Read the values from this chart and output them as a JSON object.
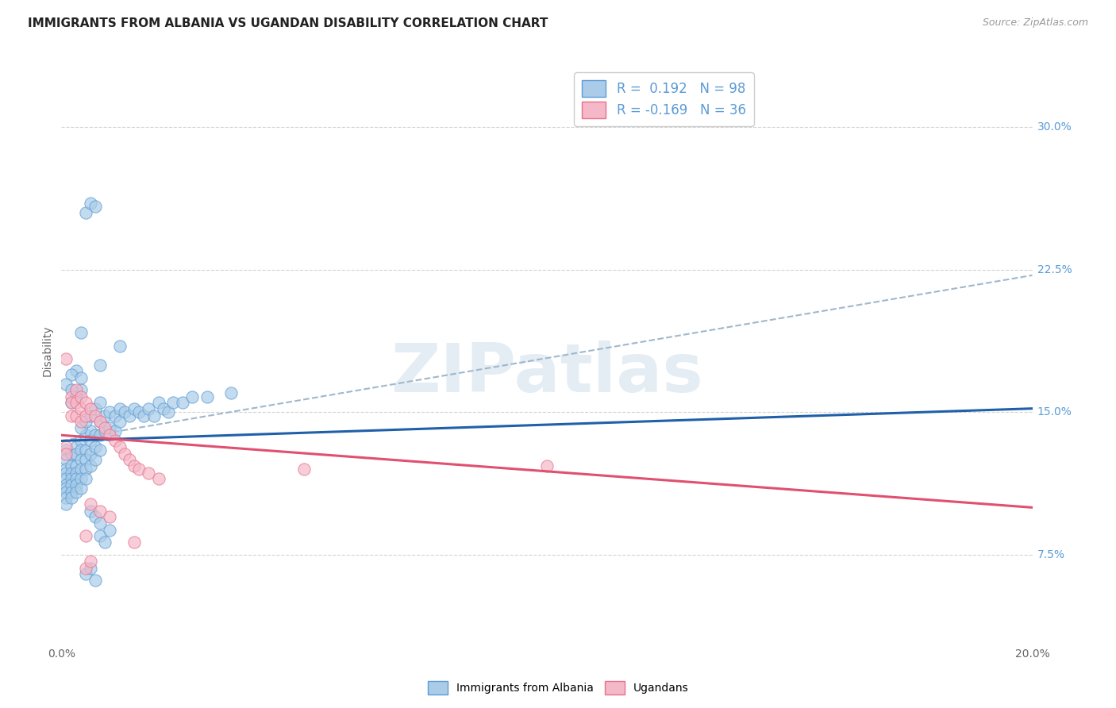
{
  "title": "IMMIGRANTS FROM ALBANIA VS UGANDAN DISABILITY CORRELATION CHART",
  "source": "Source: ZipAtlas.com",
  "ylabel": "Disability",
  "ytick_labels": [
    "7.5%",
    "15.0%",
    "22.5%",
    "30.0%"
  ],
  "ytick_values": [
    0.075,
    0.15,
    0.225,
    0.3
  ],
  "xlim": [
    0.0,
    0.2
  ],
  "ylim": [
    0.03,
    0.335
  ],
  "watermark": "ZIPatlas",
  "blue_color": "#5b9bd5",
  "pink_color": "#e8708a",
  "blue_scatter_face": "#aacce8",
  "pink_scatter_face": "#f4b8c8",
  "trend_blue": "#2060a8",
  "trend_pink": "#e05070",
  "trend_dashed_color": "#a0b8cc",
  "albania_data": [
    [
      0.001,
      0.13
    ],
    [
      0.001,
      0.125
    ],
    [
      0.001,
      0.12
    ],
    [
      0.001,
      0.118
    ],
    [
      0.001,
      0.115
    ],
    [
      0.001,
      0.112
    ],
    [
      0.001,
      0.11
    ],
    [
      0.001,
      0.108
    ],
    [
      0.001,
      0.105
    ],
    [
      0.001,
      0.102
    ],
    [
      0.002,
      0.128
    ],
    [
      0.002,
      0.122
    ],
    [
      0.002,
      0.118
    ],
    [
      0.002,
      0.115
    ],
    [
      0.002,
      0.112
    ],
    [
      0.002,
      0.108
    ],
    [
      0.002,
      0.105
    ],
    [
      0.003,
      0.132
    ],
    [
      0.003,
      0.128
    ],
    [
      0.003,
      0.122
    ],
    [
      0.003,
      0.118
    ],
    [
      0.003,
      0.115
    ],
    [
      0.003,
      0.112
    ],
    [
      0.003,
      0.108
    ],
    [
      0.004,
      0.135
    ],
    [
      0.004,
      0.13
    ],
    [
      0.004,
      0.125
    ],
    [
      0.004,
      0.12
    ],
    [
      0.004,
      0.115
    ],
    [
      0.004,
      0.11
    ],
    [
      0.005,
      0.138
    ],
    [
      0.005,
      0.13
    ],
    [
      0.005,
      0.125
    ],
    [
      0.005,
      0.12
    ],
    [
      0.005,
      0.115
    ],
    [
      0.006,
      0.14
    ],
    [
      0.006,
      0.135
    ],
    [
      0.006,
      0.128
    ],
    [
      0.006,
      0.122
    ],
    [
      0.007,
      0.138
    ],
    [
      0.007,
      0.132
    ],
    [
      0.007,
      0.125
    ],
    [
      0.008,
      0.145
    ],
    [
      0.008,
      0.138
    ],
    [
      0.008,
      0.13
    ],
    [
      0.009,
      0.148
    ],
    [
      0.009,
      0.14
    ],
    [
      0.01,
      0.15
    ],
    [
      0.01,
      0.142
    ],
    [
      0.011,
      0.148
    ],
    [
      0.011,
      0.14
    ],
    [
      0.012,
      0.152
    ],
    [
      0.012,
      0.145
    ],
    [
      0.013,
      0.15
    ],
    [
      0.014,
      0.148
    ],
    [
      0.015,
      0.152
    ],
    [
      0.016,
      0.15
    ],
    [
      0.017,
      0.148
    ],
    [
      0.018,
      0.152
    ],
    [
      0.019,
      0.148
    ],
    [
      0.02,
      0.155
    ],
    [
      0.021,
      0.152
    ],
    [
      0.022,
      0.15
    ],
    [
      0.023,
      0.155
    ],
    [
      0.025,
      0.155
    ],
    [
      0.027,
      0.158
    ],
    [
      0.03,
      0.158
    ],
    [
      0.035,
      0.16
    ],
    [
      0.004,
      0.192
    ],
    [
      0.008,
      0.175
    ],
    [
      0.012,
      0.185
    ],
    [
      0.005,
      0.255
    ],
    [
      0.006,
      0.26
    ],
    [
      0.007,
      0.258
    ],
    [
      0.005,
      0.065
    ],
    [
      0.006,
      0.068
    ],
    [
      0.007,
      0.062
    ],
    [
      0.003,
      0.16
    ],
    [
      0.004,
      0.162
    ],
    [
      0.002,
      0.155
    ],
    [
      0.008,
      0.085
    ],
    [
      0.009,
      0.082
    ],
    [
      0.01,
      0.088
    ],
    [
      0.003,
      0.172
    ],
    [
      0.002,
      0.17
    ],
    [
      0.004,
      0.168
    ],
    [
      0.001,
      0.165
    ],
    [
      0.002,
      0.162
    ],
    [
      0.003,
      0.158
    ],
    [
      0.006,
      0.098
    ],
    [
      0.007,
      0.095
    ],
    [
      0.008,
      0.092
    ],
    [
      0.004,
      0.142
    ],
    [
      0.005,
      0.145
    ],
    [
      0.006,
      0.148
    ],
    [
      0.007,
      0.152
    ],
    [
      0.008,
      0.155
    ]
  ],
  "uganda_data": [
    [
      0.001,
      0.132
    ],
    [
      0.001,
      0.128
    ],
    [
      0.001,
      0.178
    ],
    [
      0.002,
      0.158
    ],
    [
      0.002,
      0.155
    ],
    [
      0.002,
      0.148
    ],
    [
      0.003,
      0.162
    ],
    [
      0.003,
      0.155
    ],
    [
      0.003,
      0.148
    ],
    [
      0.004,
      0.158
    ],
    [
      0.004,
      0.152
    ],
    [
      0.004,
      0.145
    ],
    [
      0.005,
      0.155
    ],
    [
      0.005,
      0.148
    ],
    [
      0.006,
      0.152
    ],
    [
      0.007,
      0.148
    ],
    [
      0.008,
      0.145
    ],
    [
      0.009,
      0.142
    ],
    [
      0.01,
      0.138
    ],
    [
      0.011,
      0.135
    ],
    [
      0.012,
      0.132
    ],
    [
      0.013,
      0.128
    ],
    [
      0.014,
      0.125
    ],
    [
      0.015,
      0.122
    ],
    [
      0.016,
      0.12
    ],
    [
      0.018,
      0.118
    ],
    [
      0.02,
      0.115
    ],
    [
      0.006,
      0.102
    ],
    [
      0.008,
      0.098
    ],
    [
      0.01,
      0.095
    ],
    [
      0.005,
      0.068
    ],
    [
      0.006,
      0.072
    ],
    [
      0.05,
      0.12
    ],
    [
      0.1,
      0.122
    ],
    [
      0.005,
      0.085
    ],
    [
      0.015,
      0.082
    ]
  ],
  "albania_trend_x": [
    0.0,
    0.2
  ],
  "albania_trend_y": [
    0.135,
    0.152
  ],
  "pink_trend_x": [
    0.0,
    0.2
  ],
  "pink_trend_y": [
    0.138,
    0.1
  ],
  "dashed_trend_x": [
    0.0,
    0.2
  ],
  "dashed_trend_y": [
    0.135,
    0.222
  ],
  "background_color": "#ffffff",
  "grid_color": "#cccccc",
  "title_fontsize": 11,
  "axis_label_fontsize": 10,
  "tick_label_fontsize": 10,
  "legend_fontsize": 12,
  "source_fontsize": 9
}
